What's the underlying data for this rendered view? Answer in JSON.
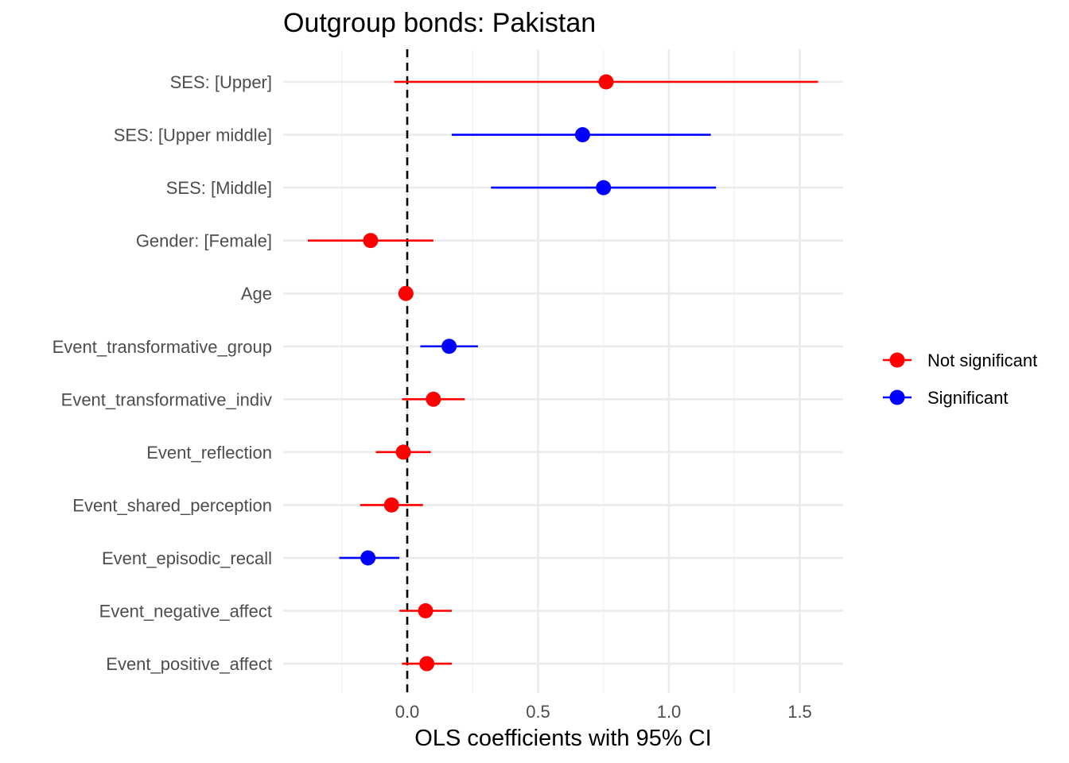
{
  "chart_data": {
    "type": "scatter",
    "title": "Outgroup bonds: Pakistan",
    "xlabel": "OLS coefficients with 95% CI",
    "ylabel": "",
    "xlim": [
      -0.48,
      1.67
    ],
    "xticks": [
      0.0,
      0.5,
      1.0,
      1.5
    ],
    "xtick_labels": [
      "0.0",
      "0.5",
      "1.0",
      "1.5"
    ],
    "minor_gridlines": [
      -0.25,
      0.25,
      0.75,
      1.25
    ],
    "reference_line": {
      "x": 0,
      "style": "dashed",
      "color": "#000000"
    },
    "grid": true,
    "legend": {
      "placement": "right",
      "entries": [
        {
          "label": "Not significant",
          "color": "#ff0000"
        },
        {
          "label": "Significant",
          "color": "#0000ff"
        }
      ]
    },
    "categories": [
      "SES:  [Upper]",
      "SES:  [Upper middle]",
      "SES:  [Middle]",
      "Gender:  [Female]",
      "Age",
      "Event_transformative_group",
      "Event_transformative_indiv",
      "Event_reflection",
      "Event_shared_perception",
      "Event_episodic_recall",
      "Event_negative_affect",
      "Event_positive_affect"
    ],
    "points": [
      {
        "term": "SES:  [Upper]",
        "estimate": 0.76,
        "ci_low": -0.05,
        "ci_high": 1.57,
        "significance": "Not significant"
      },
      {
        "term": "SES:  [Upper middle]",
        "estimate": 0.67,
        "ci_low": 0.17,
        "ci_high": 1.16,
        "significance": "Significant"
      },
      {
        "term": "SES:  [Middle]",
        "estimate": 0.75,
        "ci_low": 0.32,
        "ci_high": 1.18,
        "significance": "Significant"
      },
      {
        "term": "Gender:  [Female]",
        "estimate": -0.14,
        "ci_low": -0.38,
        "ci_high": 0.1,
        "significance": "Not significant"
      },
      {
        "term": "Age",
        "estimate": -0.005,
        "ci_low": -0.01,
        "ci_high": 0.0,
        "significance": "Not significant"
      },
      {
        "term": "Event_transformative_group",
        "estimate": 0.16,
        "ci_low": 0.05,
        "ci_high": 0.27,
        "significance": "Significant"
      },
      {
        "term": "Event_transformative_indiv",
        "estimate": 0.1,
        "ci_low": -0.02,
        "ci_high": 0.22,
        "significance": "Not significant"
      },
      {
        "term": "Event_reflection",
        "estimate": -0.015,
        "ci_low": -0.12,
        "ci_high": 0.09,
        "significance": "Not significant"
      },
      {
        "term": "Event_shared_perception",
        "estimate": -0.06,
        "ci_low": -0.18,
        "ci_high": 0.06,
        "significance": "Not significant"
      },
      {
        "term": "Event_episodic_recall",
        "estimate": -0.15,
        "ci_low": -0.26,
        "ci_high": -0.03,
        "significance": "Significant"
      },
      {
        "term": "Event_negative_affect",
        "estimate": 0.07,
        "ci_low": -0.03,
        "ci_high": 0.17,
        "significance": "Not significant"
      },
      {
        "term": "Event_positive_affect",
        "estimate": 0.075,
        "ci_low": -0.02,
        "ci_high": 0.17,
        "significance": "Not significant"
      }
    ]
  }
}
